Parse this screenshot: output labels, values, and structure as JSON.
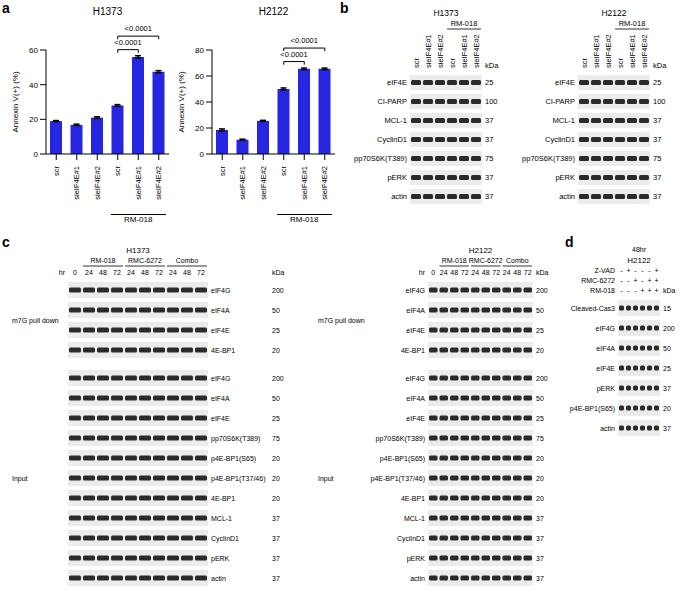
{
  "chart_data": [
    {
      "panel_label": "a",
      "type": "bar",
      "title": "H1373",
      "y_label": "Annexin V(+) (%)",
      "categories": [
        "scr",
        "sieIF4E#1",
        "sieIF4E#2",
        "scr",
        "sieIF4E#1",
        "sieIF4E#2"
      ],
      "values": [
        19,
        16.8,
        21,
        28,
        56,
        47.5
      ],
      "errors": [
        0.3,
        0.4,
        0.5,
        0.5,
        0.7,
        0.6
      ],
      "color": "#2626e0",
      "ylim": [
        0,
        60
      ],
      "yticks": [
        0,
        20,
        40,
        60
      ],
      "groups": [
        {
          "label": "RM-018",
          "from": 3,
          "to": 5
        }
      ],
      "comparisons": [
        {
          "from": 3,
          "to": 4,
          "label": "<0.0001"
        },
        {
          "from": 3,
          "to": 5,
          "label": "<0.0001"
        }
      ]
    },
    {
      "type": "bar",
      "title": "H2122",
      "y_label": "Annexin V(+) (%)",
      "categories": [
        "scr",
        "sieIF4E#1",
        "sieIF4E#2",
        "scr",
        "sieIF4E#1",
        "sieIF4E#2"
      ],
      "values": [
        18.5,
        11,
        25.5,
        50,
        65.5,
        65.5
      ],
      "errors": [
        0.8,
        0.4,
        0.4,
        0.8,
        0.6,
        0.6
      ],
      "color": "#2626e0",
      "ylim": [
        0,
        80
      ],
      "yticks": [
        0,
        20,
        40,
        60,
        80
      ],
      "groups": [
        {
          "label": "RM-018",
          "from": 3,
          "to": 5
        }
      ],
      "comparisons": [
        {
          "from": 3,
          "to": 4,
          "label": "<0.0001"
        },
        {
          "from": 3,
          "to": 5,
          "label": "<0.0001"
        }
      ]
    }
  ],
  "panels": [
    {
      "label": "b",
      "blots": [
        {
          "title": "H1373",
          "lanes": [
            "scr",
            "sieIF4E#1",
            "sieIF4E#2",
            "scr",
            "sieIF4E#1",
            "sieIF4E#2"
          ],
          "groups": [
            {
              "label": "RM-018",
              "from": 3,
              "to": 5
            }
          ],
          "kda_label": "kDa",
          "sections": [
            {
              "rows": [
                {
                  "name": "eIF4E",
                  "kda": 25
                },
                {
                  "name": "Cl-PARP",
                  "kda": 100
                },
                {
                  "name": "MCL-1",
                  "kda": 37
                },
                {
                  "name": "CyclinD1",
                  "kda": 37
                },
                {
                  "name": "pp70S6K(T389)",
                  "kda": 75
                },
                {
                  "name": "pERK",
                  "kda": 37
                },
                {
                  "name": "actin",
                  "kda": 37
                }
              ]
            }
          ]
        },
        {
          "title": "H2122",
          "lanes": [
            "scr",
            "sieIF4E#1",
            "sieIF4E#2",
            "scr",
            "sieIF4E#1",
            "sieIF4E#2"
          ],
          "groups": [
            {
              "label": "RM-018",
              "from": 3,
              "to": 5
            }
          ],
          "kda_label": "kDa",
          "sections": [
            {
              "rows": [
                {
                  "name": "eIF4E",
                  "kda": 25
                },
                {
                  "name": "Cl-PARP",
                  "kda": 100
                },
                {
                  "name": "MCL-1",
                  "kda": 37
                },
                {
                  "name": "CyclinD1",
                  "kda": 37
                },
                {
                  "name": "pp70S6K(T389)",
                  "kda": 75
                },
                {
                  "name": "pERK",
                  "kda": 37
                },
                {
                  "name": "actin",
                  "kda": 37
                }
              ]
            }
          ]
        }
      ]
    },
    {
      "label": "c",
      "blots": [
        {
          "title": "H1373",
          "lane_header": "hr",
          "lanes": [
            0,
            24,
            48,
            72,
            24,
            48,
            72,
            24,
            48,
            72
          ],
          "groups": [
            {
              "label": "RM-018",
              "from": 1,
              "to": 3
            },
            {
              "label": "RMC-6272",
              "from": 4,
              "to": 6
            },
            {
              "label": "Combo",
              "from": 7,
              "to": 9
            }
          ],
          "kda_label": "kDa",
          "sections": [
            {
              "label": "m7G pull down",
              "rows": [
                {
                  "name": "eIF4G",
                  "kda": 200
                },
                {
                  "name": "eIF4A",
                  "kda": 50
                },
                {
                  "name": "eIF4E",
                  "kda": 25
                },
                {
                  "name": "4E-BP1",
                  "kda": 20
                }
              ]
            },
            {
              "label": "Input",
              "rows": [
                {
                  "name": "eIF4G",
                  "kda": 200
                },
                {
                  "name": "eIF4A",
                  "kda": 50
                },
                {
                  "name": "eIF4E",
                  "kda": 25
                },
                {
                  "name": "pp70S6K(T389)",
                  "kda": 75
                },
                {
                  "name": "p4E-BP1(S65)",
                  "kda": 20
                },
                {
                  "name": "p4E-BP1(T37/46)",
                  "kda": 20
                },
                {
                  "name": "4E-BP1",
                  "kda": 20
                },
                {
                  "name": "MCL-1",
                  "kda": 37
                },
                {
                  "name": "CyclinD1",
                  "kda": 37
                },
                {
                  "name": "pERK",
                  "kda": 37
                },
                {
                  "name": "actin",
                  "kda": 37
                }
              ]
            }
          ]
        },
        {
          "title": "H2122",
          "lane_header": "hr",
          "lanes": [
            0,
            24,
            48,
            72,
            24,
            48,
            72,
            24,
            48,
            72
          ],
          "groups": [
            {
              "label": "RM-018",
              "from": 1,
              "to": 3
            },
            {
              "label": "RMC-6272",
              "from": 4,
              "to": 6
            },
            {
              "label": "Combo",
              "from": 7,
              "to": 9
            }
          ],
          "kda_label": "kDa",
          "sections": [
            {
              "label": "m7G pull down",
              "rows": [
                {
                  "name": "eIF4G",
                  "kda": 200
                },
                {
                  "name": "eIF4A",
                  "kda": 50
                },
                {
                  "name": "eIF4E",
                  "kda": 25
                },
                {
                  "name": "4E-BP1",
                  "kda": 20
                }
              ]
            },
            {
              "label": "Input",
              "rows": [
                {
                  "name": "eIF4G",
                  "kda": 200
                },
                {
                  "name": "eIF4A",
                  "kda": 50
                },
                {
                  "name": "eIF4E",
                  "kda": 25
                },
                {
                  "name": "pp70S6K(T389)",
                  "kda": 75
                },
                {
                  "name": "p4E-BP1(S65)",
                  "kda": 20
                },
                {
                  "name": "p4E-BP1(T37/46)",
                  "kda": 20
                },
                {
                  "name": "4E-BP1",
                  "kda": 20
                },
                {
                  "name": "MCL-1",
                  "kda": 37
                },
                {
                  "name": "CyclinD1",
                  "kda": 37
                },
                {
                  "name": "pERK",
                  "kda": 37
                },
                {
                  "name": "actin",
                  "kda": 37
                }
              ]
            }
          ]
        }
      ]
    },
    {
      "label": "d",
      "header": "48hr",
      "blots": [
        {
          "title": "H2122",
          "conditions": [
            {
              "name": "Z-VAD",
              "signs": [
                "-",
                "+",
                "-",
                "-",
                "-",
                "+"
              ]
            },
            {
              "name": "RMC-6272",
              "signs": [
                "-",
                "-",
                "+",
                "-",
                "+",
                "+"
              ]
            },
            {
              "name": "RM-018",
              "signs": [
                "-",
                "-",
                "-",
                "+",
                "+",
                "+"
              ]
            }
          ],
          "kda_label": "kDa",
          "sections": [
            {
              "rows": [
                {
                  "name": "Cleaved-Cas3",
                  "kda": 15
                },
                {
                  "name": "eIF4G",
                  "kda": 200
                },
                {
                  "name": "eIF4A",
                  "kda": 50
                },
                {
                  "name": "eIF4E",
                  "kda": 25
                },
                {
                  "name": "pERK",
                  "kda": 37
                },
                {
                  "name": "p4E-BP1(S65)",
                  "kda": 20
                },
                {
                  "name": "actin",
                  "kda": 37
                }
              ]
            }
          ]
        }
      ]
    }
  ]
}
